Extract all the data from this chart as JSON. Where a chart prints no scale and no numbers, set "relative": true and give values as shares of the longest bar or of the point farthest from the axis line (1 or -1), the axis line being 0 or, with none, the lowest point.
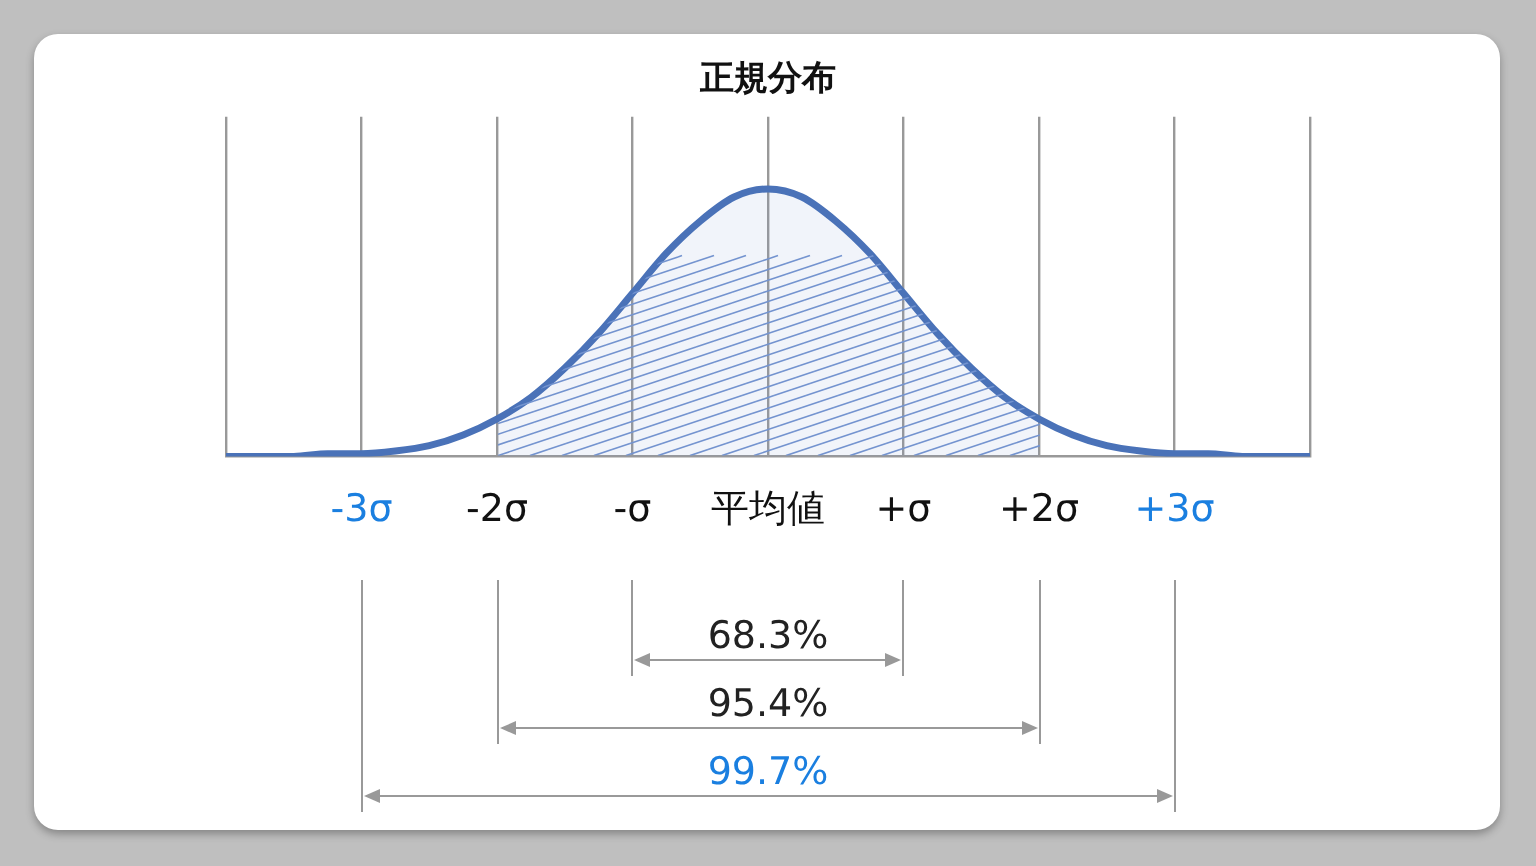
{
  "chart_data": {
    "type": "line",
    "title": "正規分布",
    "relative": true,
    "x": [
      -4,
      -3.75,
      -3.5,
      -3.25,
      -3,
      -2.75,
      -2.5,
      -2.25,
      -2,
      -1.75,
      -1.5,
      -1.25,
      -1,
      -0.75,
      -0.5,
      -0.25,
      0,
      0.25,
      0.5,
      0.75,
      1,
      1.25,
      1.5,
      1.75,
      2,
      2.25,
      2.5,
      2.75,
      3,
      3.25,
      3.5,
      3.75,
      4
    ],
    "series": [
      {
        "color": "#4a72b8",
        "values": [
          0,
          0,
          0,
          0.01,
          0.01,
          0.02,
          0.04,
          0.08,
          0.14,
          0.22,
          0.33,
          0.46,
          0.61,
          0.76,
          0.88,
          0.97,
          1,
          0.97,
          0.88,
          0.76,
          0.61,
          0.46,
          0.33,
          0.22,
          0.14,
          0.08,
          0.04,
          0.02,
          0.01,
          0.01,
          0,
          0,
          0
        ]
      },
      {
        "type": "area",
        "color": "#7393cf",
        "x": [
          -2,
          -1.75,
          -1.5,
          -1.25,
          -1,
          -0.75,
          -0.5,
          -0.25,
          0,
          0.25,
          0.5,
          0.75,
          1,
          1.25,
          1.5,
          1.75,
          2
        ],
        "values": [
          0.14,
          0.22,
          0.33,
          0.46,
          0.61,
          0.76,
          0.88,
          0.97,
          1,
          0.97,
          0.88,
          0.76,
          0.61,
          0.46,
          0.33,
          0.22,
          0.14
        ]
      }
    ],
    "xlim": [
      -4,
      4
    ],
    "xticks": [
      {
        "value": -4,
        "label": null
      },
      {
        "value": -3,
        "label": "-3σ"
      },
      {
        "value": -2,
        "label": "-2σ"
      },
      {
        "value": -1,
        "label": "-σ"
      },
      {
        "value": 0,
        "label": "平均値"
      },
      {
        "value": 1,
        "label": "+σ"
      },
      {
        "value": 2,
        "label": "+2σ"
      },
      {
        "value": 3,
        "label": "+3σ"
      },
      {
        "value": 4,
        "label": null
      }
    ],
    "grid": "x",
    "marker": "none",
    "line_style": "solid",
    "annotations": [
      "68.3%",
      "95.4%",
      "99.7%"
    ]
  }
}
